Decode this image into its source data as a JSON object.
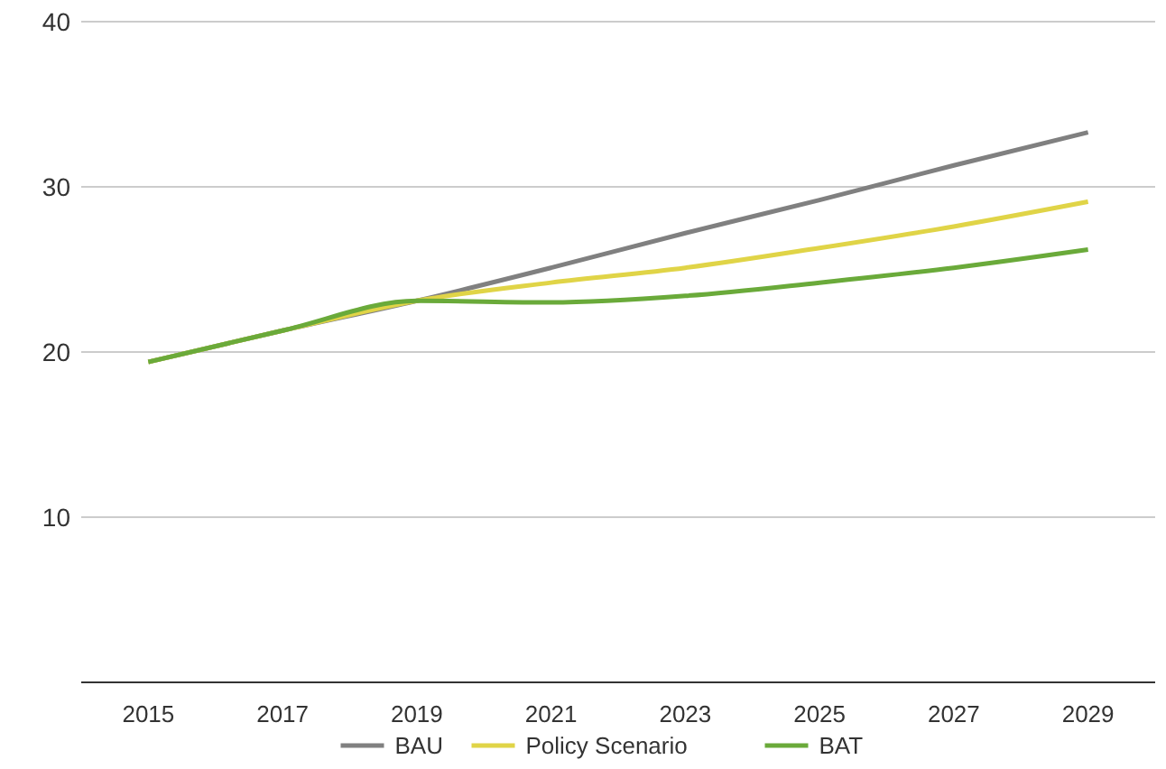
{
  "chart_data": {
    "type": "line",
    "x": [
      2015,
      2017,
      2019,
      2021,
      2023,
      2025,
      2027,
      2029
    ],
    "xlim": [
      2014,
      2030
    ],
    "xticks": [
      2015,
      2017,
      2019,
      2021,
      2023,
      2025,
      2027,
      2029
    ],
    "ylim": [
      0,
      40
    ],
    "yticks": [
      10,
      20,
      30,
      40
    ],
    "grid": "y",
    "legend": "bottom",
    "marker": "none",
    "line_style": "solid",
    "series": [
      {
        "name": "BAU",
        "color": "#808080",
        "values": [
          19.4,
          21.3,
          23.1,
          25.1,
          27.2,
          29.2,
          31.3,
          33.3
        ]
      },
      {
        "name": "Policy Scenario",
        "color": "#e0d447",
        "values": [
          19.4,
          21.3,
          23.1,
          24.2,
          25.1,
          26.3,
          27.6,
          29.1
        ]
      },
      {
        "name": "BAT",
        "color": "#6aaa3a",
        "values": [
          19.4,
          21.3,
          23.1,
          23.0,
          23.4,
          24.2,
          25.1,
          26.2
        ]
      }
    ]
  }
}
